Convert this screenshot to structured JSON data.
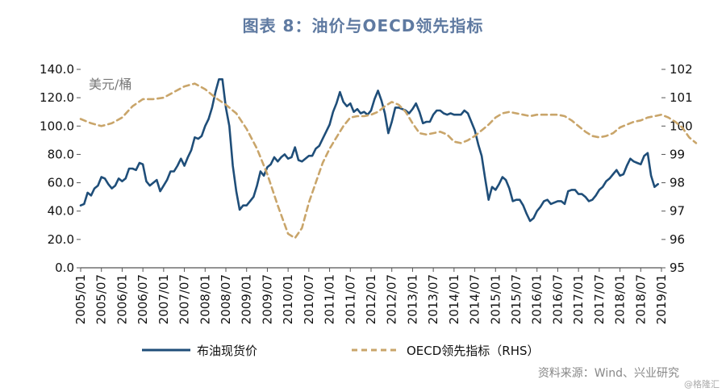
{
  "chart_data": {
    "type": "line",
    "title": "图表 8：油价与OECD领先指标",
    "ylabel_left": "美元/桶",
    "ylim_left": [
      0,
      140
    ],
    "ylim_right": [
      95,
      102
    ],
    "y_ticks_left": [
      "0.0",
      "20.0",
      "40.0",
      "60.0",
      "80.0",
      "100.0",
      "120.0",
      "140.0"
    ],
    "y_ticks_right": [
      "95",
      "96",
      "97",
      "98",
      "99",
      "100",
      "101",
      "102"
    ],
    "x_tick_labels": [
      "2005/01",
      "2005/07",
      "2006/01",
      "2006/07",
      "2007/01",
      "2007/07",
      "2008/01",
      "2008/07",
      "2009/01",
      "2009/07",
      "2010/01",
      "2010/07",
      "2011/01",
      "2011/07",
      "2012/01",
      "2012/07",
      "2013/01",
      "2013/07",
      "2014/01",
      "2014/07",
      "2015/01",
      "2015/07",
      "2016/01",
      "2016/07",
      "2017/01",
      "2017/07",
      "2018/01",
      "2018/07",
      "2019/01"
    ],
    "series": [
      {
        "name": "布油现货价",
        "axis": "left",
        "color": "#1f4e79",
        "style": "solid",
        "points": [
          [
            0,
            44
          ],
          [
            1,
            45
          ],
          [
            2,
            53
          ],
          [
            3,
            51
          ],
          [
            4,
            56
          ],
          [
            5,
            58
          ],
          [
            6,
            64
          ],
          [
            7,
            63
          ],
          [
            8,
            59
          ],
          [
            9,
            56
          ],
          [
            10,
            58
          ],
          [
            11,
            63
          ],
          [
            12,
            61
          ],
          [
            13,
            63
          ],
          [
            14,
            70
          ],
          [
            15,
            70
          ],
          [
            16,
            69
          ],
          [
            17,
            74
          ],
          [
            18,
            73
          ],
          [
            19,
            61
          ],
          [
            20,
            58
          ],
          [
            21,
            60
          ],
          [
            22,
            62
          ],
          [
            23,
            54
          ],
          [
            24,
            58
          ],
          [
            25,
            62
          ],
          [
            26,
            68
          ],
          [
            27,
            68
          ],
          [
            28,
            72
          ],
          [
            29,
            77
          ],
          [
            30,
            72
          ],
          [
            31,
            78
          ],
          [
            32,
            83
          ],
          [
            33,
            92
          ],
          [
            34,
            91
          ],
          [
            35,
            93
          ],
          [
            36,
            100
          ],
          [
            37,
            105
          ],
          [
            38,
            113
          ],
          [
            39,
            124
          ],
          [
            40,
            133
          ],
          [
            41,
            133
          ],
          [
            42,
            113
          ],
          [
            43,
            100
          ],
          [
            44,
            72
          ],
          [
            45,
            54
          ],
          [
            46,
            41
          ],
          [
            47,
            44
          ],
          [
            48,
            44
          ],
          [
            49,
            47
          ],
          [
            50,
            50
          ],
          [
            51,
            58
          ],
          [
            52,
            68
          ],
          [
            53,
            65
          ],
          [
            54,
            71
          ],
          [
            55,
            73
          ],
          [
            56,
            78
          ],
          [
            57,
            75
          ],
          [
            58,
            78
          ],
          [
            59,
            80
          ],
          [
            60,
            77
          ],
          [
            61,
            78
          ],
          [
            62,
            85
          ],
          [
            63,
            76
          ],
          [
            64,
            75
          ],
          [
            65,
            77
          ],
          [
            66,
            79
          ],
          [
            67,
            79
          ],
          [
            68,
            84
          ],
          [
            69,
            86
          ],
          [
            70,
            91
          ],
          [
            71,
            96
          ],
          [
            72,
            101
          ],
          [
            73,
            110
          ],
          [
            74,
            116
          ],
          [
            75,
            124
          ],
          [
            76,
            117
          ],
          [
            77,
            114
          ],
          [
            78,
            116
          ],
          [
            79,
            110
          ],
          [
            80,
            112
          ],
          [
            81,
            109
          ],
          [
            82,
            110
          ],
          [
            83,
            108
          ],
          [
            84,
            111
          ],
          [
            85,
            119
          ],
          [
            86,
            125
          ],
          [
            87,
            118
          ],
          [
            88,
            109
          ],
          [
            89,
            95
          ],
          [
            90,
            103
          ],
          [
            91,
            113
          ],
          [
            92,
            113
          ],
          [
            93,
            112
          ],
          [
            94,
            111
          ],
          [
            95,
            109
          ],
          [
            96,
            112
          ],
          [
            97,
            116
          ],
          [
            98,
            110
          ],
          [
            99,
            102
          ],
          [
            100,
            103
          ],
          [
            101,
            103
          ],
          [
            102,
            108
          ],
          [
            103,
            111
          ],
          [
            104,
            111
          ],
          [
            105,
            109
          ],
          [
            106,
            108
          ],
          [
            107,
            109
          ],
          [
            108,
            108
          ],
          [
            109,
            108
          ],
          [
            110,
            108
          ],
          [
            111,
            111
          ],
          [
            112,
            109
          ],
          [
            113,
            103
          ],
          [
            114,
            97
          ],
          [
            115,
            87
          ],
          [
            116,
            79
          ],
          [
            117,
            63
          ],
          [
            118,
            48
          ],
          [
            119,
            57
          ],
          [
            120,
            55
          ],
          [
            121,
            59
          ],
          [
            122,
            64
          ],
          [
            123,
            62
          ],
          [
            124,
            56
          ],
          [
            125,
            47
          ],
          [
            126,
            48
          ],
          [
            127,
            48
          ],
          [
            128,
            44
          ],
          [
            129,
            38
          ],
          [
            130,
            33
          ],
          [
            131,
            35
          ],
          [
            132,
            40
          ],
          [
            133,
            43
          ],
          [
            134,
            47
          ],
          [
            135,
            48
          ],
          [
            136,
            45
          ],
          [
            137,
            46
          ],
          [
            138,
            47
          ],
          [
            139,
            47
          ],
          [
            140,
            45
          ],
          [
            141,
            54
          ],
          [
            142,
            55
          ],
          [
            143,
            55
          ],
          [
            144,
            52
          ],
          [
            145,
            52
          ],
          [
            146,
            50
          ],
          [
            147,
            47
          ],
          [
            148,
            48
          ],
          [
            149,
            51
          ],
          [
            150,
            55
          ],
          [
            151,
            57
          ],
          [
            152,
            61
          ],
          [
            153,
            63
          ],
          [
            154,
            66
          ],
          [
            155,
            69
          ],
          [
            156,
            65
          ],
          [
            157,
            66
          ],
          [
            158,
            72
          ],
          [
            159,
            77
          ],
          [
            160,
            75
          ],
          [
            161,
            74
          ],
          [
            162,
            73
          ],
          [
            163,
            79
          ],
          [
            164,
            81
          ],
          [
            165,
            65
          ],
          [
            166,
            57
          ],
          [
            167,
            59
          ]
        ]
      },
      {
        "name": "OECD领先指标（RHS）",
        "axis": "right",
        "color": "#c9a56a",
        "style": "dashed",
        "points": [
          [
            0,
            100.25
          ],
          [
            3,
            100.1
          ],
          [
            6,
            100.0
          ],
          [
            9,
            100.1
          ],
          [
            12,
            100.3
          ],
          [
            15,
            100.7
          ],
          [
            18,
            100.95
          ],
          [
            21,
            100.95
          ],
          [
            24,
            101.0
          ],
          [
            27,
            101.2
          ],
          [
            30,
            101.4
          ],
          [
            33,
            101.5
          ],
          [
            36,
            101.3
          ],
          [
            39,
            101.0
          ],
          [
            42,
            100.75
          ],
          [
            45,
            100.45
          ],
          [
            48,
            99.9
          ],
          [
            51,
            99.2
          ],
          [
            54,
            98.3
          ],
          [
            57,
            97.2
          ],
          [
            60,
            96.2
          ],
          [
            62,
            96.05
          ],
          [
            64,
            96.4
          ],
          [
            66,
            97.3
          ],
          [
            68,
            98.0
          ],
          [
            70,
            98.7
          ],
          [
            72,
            99.2
          ],
          [
            74,
            99.6
          ],
          [
            76,
            100.0
          ],
          [
            78,
            100.3
          ],
          [
            80,
            100.35
          ],
          [
            82,
            100.35
          ],
          [
            84,
            100.4
          ],
          [
            86,
            100.5
          ],
          [
            88,
            100.7
          ],
          [
            90,
            100.85
          ],
          [
            92,
            100.75
          ],
          [
            94,
            100.5
          ],
          [
            96,
            100.1
          ],
          [
            98,
            99.75
          ],
          [
            100,
            99.7
          ],
          [
            102,
            99.75
          ],
          [
            104,
            99.8
          ],
          [
            106,
            99.7
          ],
          [
            108,
            99.45
          ],
          [
            110,
            99.4
          ],
          [
            112,
            99.5
          ],
          [
            114,
            99.65
          ],
          [
            116,
            99.85
          ],
          [
            118,
            100.05
          ],
          [
            120,
            100.3
          ],
          [
            122,
            100.45
          ],
          [
            124,
            100.5
          ],
          [
            126,
            100.45
          ],
          [
            128,
            100.4
          ],
          [
            130,
            100.35
          ],
          [
            132,
            100.4
          ],
          [
            134,
            100.4
          ],
          [
            136,
            100.4
          ],
          [
            138,
            100.4
          ],
          [
            140,
            100.35
          ],
          [
            142,
            100.2
          ],
          [
            144,
            100.0
          ],
          [
            146,
            99.8
          ],
          [
            148,
            99.65
          ],
          [
            150,
            99.6
          ],
          [
            152,
            99.65
          ],
          [
            154,
            99.75
          ],
          [
            156,
            99.95
          ],
          [
            158,
            100.05
          ],
          [
            160,
            100.15
          ],
          [
            162,
            100.2
          ],
          [
            164,
            100.3
          ],
          [
            166,
            100.35
          ],
          [
            168,
            100.4
          ],
          [
            170,
            100.3
          ],
          [
            172,
            100.15
          ],
          [
            174,
            99.95
          ],
          [
            176,
            99.6
          ],
          [
            178,
            99.4
          ]
        ]
      }
    ],
    "legend": [
      "布油现货价",
      "OECD领先指标（RHS）"
    ],
    "legend_position": "bottom"
  },
  "footer": {
    "source": "资料来源：Wind、兴业研究",
    "watermark": "@格隆汇"
  }
}
